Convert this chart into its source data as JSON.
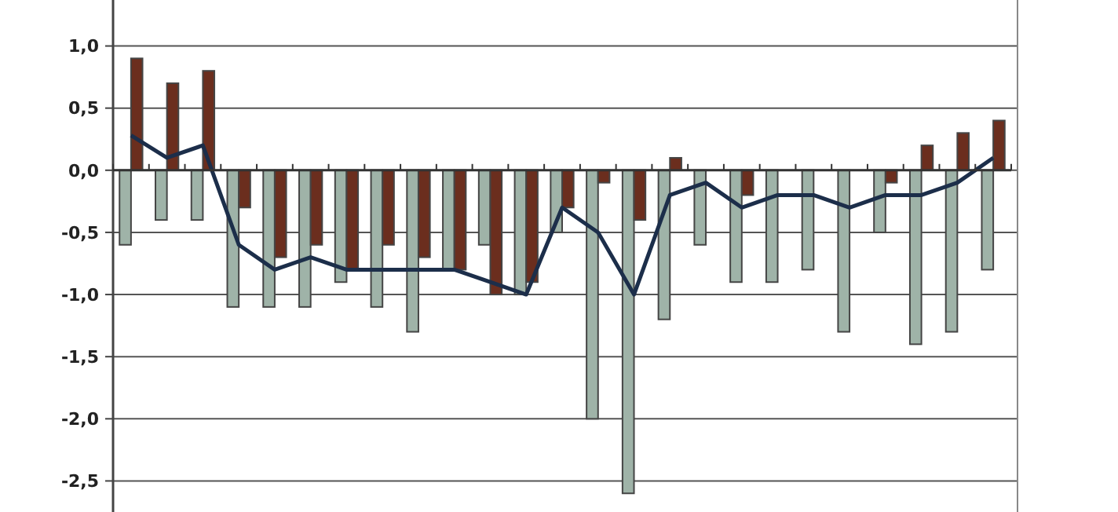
{
  "chart_data": {
    "type": "bar",
    "categories": [
      null,
      null,
      null,
      null,
      null,
      null,
      null,
      null,
      null,
      null,
      null,
      null,
      null,
      null,
      null,
      null,
      null,
      null,
      null,
      null,
      null,
      null,
      null,
      null,
      null
    ],
    "series": [
      {
        "color": "#9fb3a8",
        "values": [
          -0.6,
          -0.4,
          -0.4,
          -1.1,
          -1.1,
          -1.1,
          -0.9,
          -1.1,
          -1.3,
          -0.8,
          -0.6,
          -1.0,
          -0.5,
          -2.0,
          -2.6,
          -1.2,
          -0.6,
          -0.9,
          -0.9,
          -0.8,
          -1.3,
          -0.5,
          -1.4,
          -1.3,
          -0.8
        ]
      },
      {
        "color": "#6b2e1e",
        "values": [
          0.9,
          0.7,
          0.8,
          -0.3,
          -0.7,
          -0.6,
          -0.8,
          -0.6,
          -0.7,
          -0.8,
          -1.0,
          -0.9,
          -0.3,
          -0.1,
          -0.4,
          0.1,
          null,
          -0.2,
          null,
          null,
          null,
          -0.1,
          0.2,
          0.3,
          0.4
        ]
      },
      {
        "type": "line",
        "color": "#1c2e4a",
        "values": [
          0.28,
          0.1,
          0.2,
          -0.6,
          -0.8,
          -0.7,
          -0.8,
          -0.8,
          -0.8,
          -0.8,
          -0.9,
          -1.0,
          -0.3,
          -0.5,
          -1.0,
          -0.2,
          -0.1,
          -0.3,
          -0.2,
          -0.2,
          -0.3,
          -0.2,
          -0.2,
          -0.1,
          0.1
        ]
      }
    ],
    "ylim": [
      -2.75,
      1.37
    ],
    "yticks": [
      {
        "value": -2.5,
        "label": "-2,5"
      },
      {
        "value": -2,
        "label": "-2,0"
      },
      {
        "value": -1.5,
        "label": "-1,5"
      },
      {
        "value": -1,
        "label": "-1,0"
      },
      {
        "value": -0.5,
        "label": "-0,5"
      },
      {
        "value": 0,
        "label": "0,0"
      },
      {
        "value": 0.5,
        "label": "0,5"
      },
      {
        "value": 1,
        "label": "1,0"
      }
    ],
    "grid": "y",
    "marker": "none",
    "line_style": "solid"
  }
}
